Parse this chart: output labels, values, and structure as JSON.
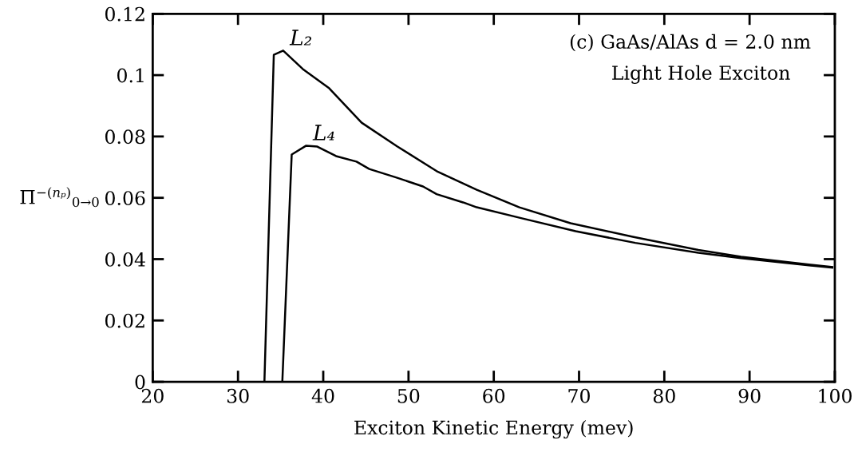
{
  "chart_data": {
    "type": "line",
    "xlabel": "Exciton Kinetic Energy (mev)",
    "ylabel": "Π$^{−(nₚ)}$$_{0→0}$",
    "xlim": [
      20,
      100
    ],
    "xticks": [
      20,
      30,
      40,
      50,
      60,
      70,
      80,
      90,
      100
    ],
    "ylim": [
      0,
      0.12
    ],
    "yticks": [
      0,
      0.02,
      0.04,
      0.06,
      0.08,
      0.1,
      0.12
    ],
    "grid": false,
    "marker": "none",
    "line_style": "solid",
    "series": [
      {
        "name": "L₂",
        "color": "#000000",
        "x": [
          33.1,
          34.2,
          35.3,
          37.6,
          40.7,
          44.5,
          48.7,
          53.3,
          58.0,
          63.0,
          69.0,
          76.3,
          84.0,
          89.0,
          99.7
        ],
        "values": [
          0,
          0.1066,
          0.108,
          0.102,
          0.0957,
          0.0845,
          0.0767,
          0.0687,
          0.0626,
          0.0569,
          0.0517,
          0.0473,
          0.043,
          0.0408,
          0.0374
        ]
      },
      {
        "name": "L₄",
        "color": "#000000",
        "x": [
          35.2,
          36.3,
          38.0,
          39.3,
          41.5,
          43.9,
          45.4,
          48.6,
          51.7,
          53.3,
          56.4,
          58.0,
          63.3,
          69.6,
          76.6,
          84.0,
          89.0,
          99.7
        ],
        "values": [
          0,
          0.0741,
          0.077,
          0.0767,
          0.0736,
          0.0718,
          0.0694,
          0.0666,
          0.0637,
          0.0612,
          0.0585,
          0.0569,
          0.0533,
          0.0491,
          0.0453,
          0.0421,
          0.0403,
          0.0372
        ]
      }
    ],
    "annotations": [
      "(c) GaAs/AlAs d = 2.0 nm",
      "Light Hole Exciton"
    ]
  }
}
